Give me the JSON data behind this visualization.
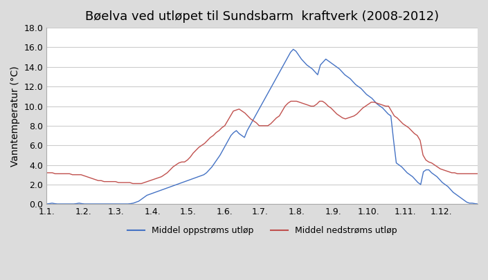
{
  "title": "Bøelva ved utløpet til Sundsbarm  kraftverk (2008-2012)",
  "ylabel": "Vanntemperatur (°C)",
  "ylim": [
    0,
    18
  ],
  "yticks": [
    0.0,
    2.0,
    4.0,
    6.0,
    8.0,
    10.0,
    12.0,
    14.0,
    16.0,
    18.0
  ],
  "xtick_labels": [
    "1.1.",
    "1.2.",
    "1.3.",
    "1.4.",
    "1.5.",
    "1.6.",
    "1.7.",
    "1.8.",
    "1.9.",
    "1.10.",
    "1.11.",
    "1.12."
  ],
  "legend_upstream": "Middel oppstrøms utløp",
  "legend_downstream": "Middel nedstrøms utløp",
  "color_upstream": "#4472C4",
  "color_downstream": "#C0504D",
  "background_color": "#DCDCDC",
  "plot_bg_color": "#FFFFFF",
  "title_fontsize": 13,
  "axis_label_fontsize": 10,
  "upstream": [
    0.02,
    0.05,
    0.1,
    0.05,
    0.02,
    0.02,
    0.02,
    0.02,
    0.02,
    0.02,
    0.02,
    0.05,
    0.1,
    0.05,
    0.02,
    0.02,
    0.02,
    0.02,
    0.02,
    0.02,
    0.02,
    0.02,
    0.02,
    0.02,
    0.02,
    0.02,
    0.02,
    0.02,
    0.02,
    0.02,
    0.02,
    0.05,
    0.1,
    0.2,
    0.3,
    0.5,
    0.7,
    0.9,
    1.0,
    1.1,
    1.2,
    1.3,
    1.4,
    1.5,
    1.6,
    1.7,
    1.8,
    1.9,
    2.0,
    2.1,
    2.2,
    2.3,
    2.4,
    2.5,
    2.6,
    2.7,
    2.8,
    2.9,
    3.0,
    3.2,
    3.5,
    3.8,
    4.2,
    4.6,
    5.0,
    5.5,
    6.0,
    6.5,
    7.0,
    7.3,
    7.5,
    7.2,
    7.0,
    6.8,
    7.5,
    8.0,
    8.5,
    9.0,
    9.5,
    10.0,
    10.5,
    11.0,
    11.5,
    12.0,
    12.5,
    13.0,
    13.5,
    14.0,
    14.5,
    15.0,
    15.5,
    15.8,
    15.6,
    15.2,
    14.8,
    14.5,
    14.2,
    14.0,
    13.8,
    13.5,
    13.2,
    14.2,
    14.5,
    14.8,
    14.6,
    14.4,
    14.2,
    14.0,
    13.8,
    13.5,
    13.2,
    13.0,
    12.8,
    12.5,
    12.2,
    12.0,
    11.8,
    11.5,
    11.2,
    11.0,
    10.8,
    10.5,
    10.2,
    10.0,
    9.8,
    9.5,
    9.2,
    9.0,
    6.5,
    4.2,
    4.0,
    3.8,
    3.5,
    3.2,
    3.0,
    2.8,
    2.5,
    2.2,
    2.0,
    3.3,
    3.5,
    3.5,
    3.2,
    3.0,
    2.8,
    2.5,
    2.2,
    2.0,
    1.8,
    1.5,
    1.2,
    1.0,
    0.8,
    0.6,
    0.4,
    0.2,
    0.1,
    0.1,
    0.05,
    0.02
  ],
  "downstream": [
    3.2,
    3.2,
    3.2,
    3.1,
    3.1,
    3.1,
    3.1,
    3.1,
    3.1,
    3.0,
    3.0,
    3.0,
    3.0,
    2.9,
    2.8,
    2.7,
    2.6,
    2.5,
    2.4,
    2.4,
    2.3,
    2.3,
    2.3,
    2.3,
    2.3,
    2.2,
    2.2,
    2.2,
    2.2,
    2.2,
    2.1,
    2.1,
    2.1,
    2.1,
    2.2,
    2.3,
    2.4,
    2.5,
    2.6,
    2.7,
    2.8,
    3.0,
    3.2,
    3.5,
    3.8,
    4.0,
    4.2,
    4.3,
    4.3,
    4.5,
    4.8,
    5.2,
    5.5,
    5.8,
    6.0,
    6.2,
    6.5,
    6.8,
    7.0,
    7.3,
    7.5,
    7.8,
    8.0,
    8.5,
    9.0,
    9.5,
    9.6,
    9.7,
    9.5,
    9.3,
    9.0,
    8.7,
    8.5,
    8.3,
    8.0,
    8.0,
    8.0,
    8.0,
    8.2,
    8.5,
    8.8,
    9.0,
    9.5,
    10.0,
    10.3,
    10.5,
    10.5,
    10.5,
    10.4,
    10.3,
    10.2,
    10.1,
    10.0,
    10.0,
    10.2,
    10.5,
    10.5,
    10.3,
    10.0,
    9.8,
    9.5,
    9.2,
    9.0,
    8.8,
    8.7,
    8.8,
    8.9,
    9.0,
    9.2,
    9.5,
    9.8,
    10.0,
    10.2,
    10.4,
    10.4,
    10.3,
    10.2,
    10.1,
    10.0,
    10.0,
    9.5,
    9.0,
    8.8,
    8.5,
    8.2,
    8.0,
    7.8,
    7.5,
    7.2,
    7.0,
    6.5,
    5.0,
    4.5,
    4.3,
    4.2,
    4.0,
    3.8,
    3.6,
    3.5,
    3.4,
    3.3,
    3.2,
    3.2,
    3.1,
    3.1,
    3.1,
    3.1,
    3.1,
    3.1,
    3.1,
    3.1
  ]
}
